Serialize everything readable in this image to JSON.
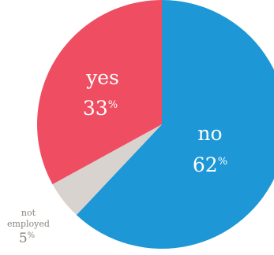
{
  "chart_data": {
    "type": "pie",
    "slices": [
      {
        "label": "no",
        "value": 62,
        "display": "62",
        "unit": "%",
        "color": "#1e97d6"
      },
      {
        "label": "not employed",
        "label_lines": [
          "not",
          "employed"
        ],
        "value": 5,
        "display": "5",
        "unit": "%",
        "color": "#d9d3cf"
      },
      {
        "label": "yes",
        "value": 33,
        "display": "33",
        "unit": "%",
        "color": "#ef4e62"
      }
    ],
    "start_angle_deg": 0,
    "direction": "clockwise",
    "legend": "none",
    "grid": false
  }
}
